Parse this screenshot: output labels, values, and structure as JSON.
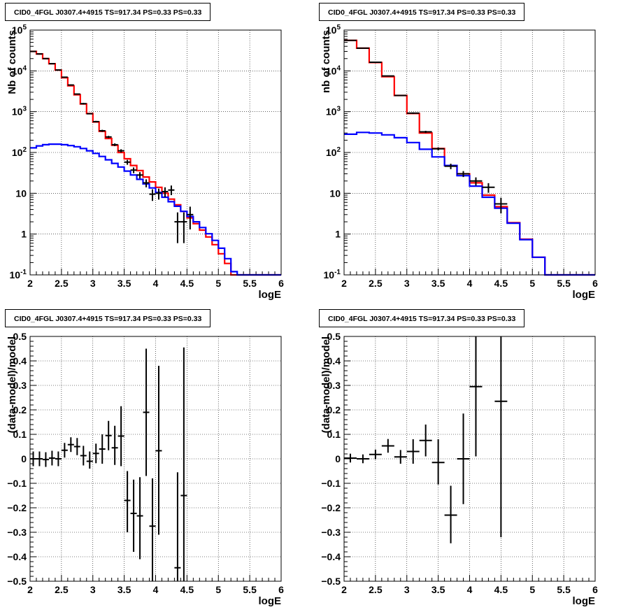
{
  "chart_data": [
    {
      "type": "histogram",
      "title": "CID0_4FGL J0307.4+4915 TS=917.34 PS=0.33 PS=0.33",
      "xlabel": "logE",
      "ylabel": "Nb of counts",
      "log_y": true,
      "xlim": [
        2,
        6
      ],
      "ylim": [
        0.1,
        100000
      ],
      "grid": true,
      "xticks": [
        "2",
        "2.5",
        "3",
        "3.5",
        "4",
        "4.5",
        "5",
        "5.5",
        "6"
      ],
      "yticks": [
        {
          "v": 0.1,
          "label": "10",
          "sup": "-1"
        },
        {
          "v": 1,
          "label": "1",
          "sup": ""
        },
        {
          "v": 10,
          "label": "10",
          "sup": ""
        },
        {
          "v": 100,
          "label": "10",
          "sup": "2"
        },
        {
          "v": 1000,
          "label": "10",
          "sup": "3"
        },
        {
          "v": 10000,
          "label": "10",
          "sup": "4"
        },
        {
          "v": 100000,
          "label": "10",
          "sup": "5"
        }
      ],
      "bin_width": 0.1,
      "bin_start": 2.0,
      "series": [
        {
          "color": "#ff0000",
          "values": [
            30000,
            26000,
            20000,
            15000,
            10500,
            6800,
            4300,
            2600,
            1550,
            900,
            560,
            330,
            220,
            150,
            100,
            70,
            48,
            36,
            25,
            19,
            14,
            10,
            7.2,
            5.2,
            3.6,
            2.5,
            1.8,
            1.25,
            0.85,
            0.55,
            0.33,
            0.19,
            0.1,
            0.1,
            0.1,
            0.1,
            0.1,
            0.1,
            0.1,
            0.1
          ]
        },
        {
          "color": "#0000ff",
          "values": [
            130,
            145,
            155,
            160,
            160,
            155,
            148,
            138,
            125,
            110,
            95,
            80,
            66,
            54,
            44,
            35,
            28,
            22,
            17,
            13.5,
            10.5,
            8,
            6.2,
            4.8,
            3.6,
            2.7,
            2.0,
            1.45,
            1.02,
            0.7,
            0.45,
            0.25,
            0.12,
            0.1,
            0.1,
            0.1,
            0.1,
            0.1,
            0.1,
            0.1
          ]
        }
      ],
      "points": [
        {
          "x": 2.05,
          "y": 30000,
          "lo": 29000,
          "hi": 31000
        },
        {
          "x": 2.15,
          "y": 26000,
          "lo": 25000,
          "hi": 27000
        },
        {
          "x": 2.25,
          "y": 20000,
          "lo": 19500,
          "hi": 20500
        },
        {
          "x": 2.35,
          "y": 15000,
          "lo": 14500,
          "hi": 15500
        },
        {
          "x": 2.45,
          "y": 10500,
          "lo": 10200,
          "hi": 10800
        },
        {
          "x": 2.55,
          "y": 7000,
          "lo": 6800,
          "hi": 7200
        },
        {
          "x": 2.65,
          "y": 4500,
          "lo": 4350,
          "hi": 4650
        },
        {
          "x": 2.75,
          "y": 2700,
          "lo": 2600,
          "hi": 2800
        },
        {
          "x": 2.85,
          "y": 1570,
          "lo": 1500,
          "hi": 1640
        },
        {
          "x": 2.95,
          "y": 890,
          "lo": 860,
          "hi": 920
        },
        {
          "x": 3.05,
          "y": 570,
          "lo": 545,
          "hi": 595
        },
        {
          "x": 3.15,
          "y": 340,
          "lo": 320,
          "hi": 360
        },
        {
          "x": 3.25,
          "y": 240,
          "lo": 225,
          "hi": 255
        },
        {
          "x": 3.35,
          "y": 155,
          "lo": 143,
          "hi": 167
        },
        {
          "x": 3.45,
          "y": 110,
          "lo": 100,
          "hi": 120
        },
        {
          "x": 3.55,
          "y": 58,
          "lo": 50,
          "hi": 66
        },
        {
          "x": 3.65,
          "y": 37,
          "lo": 31,
          "hi": 43
        },
        {
          "x": 3.75,
          "y": 28,
          "lo": 23,
          "hi": 33
        },
        {
          "x": 3.85,
          "y": 18,
          "lo": 14,
          "hi": 22
        },
        {
          "x": 3.95,
          "y": 9.5,
          "lo": 6.5,
          "hi": 12.5
        },
        {
          "x": 4.05,
          "y": 10,
          "lo": 7,
          "hi": 13
        },
        {
          "x": 4.15,
          "y": 11,
          "lo": 8,
          "hi": 14
        },
        {
          "x": 4.25,
          "y": 12,
          "lo": 9,
          "hi": 15.5
        },
        {
          "x": 4.35,
          "y": 2,
          "lo": 0.6,
          "hi": 3.4
        },
        {
          "x": 4.45,
          "y": 2,
          "lo": 0.6,
          "hi": 3.4
        },
        {
          "x": 4.55,
          "y": 3,
          "lo": 1.3,
          "hi": 4.7
        }
      ]
    },
    {
      "type": "histogram",
      "title": "CID0_4FGL J0307.4+4915 TS=917.34 PS=0.33 PS=0.33",
      "xlabel": "logE",
      "ylabel": "nb of counts",
      "log_y": true,
      "xlim": [
        2,
        6
      ],
      "ylim": [
        0.1,
        100000
      ],
      "grid": true,
      "xticks": [
        "2",
        "2.5",
        "3",
        "3.5",
        "4",
        "4.5",
        "5",
        "5.5",
        "6"
      ],
      "yticks": [
        {
          "v": 0.1,
          "label": "10",
          "sup": "-1"
        },
        {
          "v": 1,
          "label": "1",
          "sup": ""
        },
        {
          "v": 10,
          "label": "10",
          "sup": ""
        },
        {
          "v": 100,
          "label": "10",
          "sup": "2"
        },
        {
          "v": 1000,
          "label": "10",
          "sup": "3"
        },
        {
          "v": 10000,
          "label": "10",
          "sup": "4"
        },
        {
          "v": 100000,
          "label": "10",
          "sup": "5"
        }
      ],
      "bin_width": 0.2,
      "bin_start": 2.0,
      "series": [
        {
          "color": "#ff0000",
          "values": [
            56000,
            36000,
            16000,
            7200,
            2500,
            900,
            300,
            125,
            48,
            30,
            18,
            9,
            4.7,
            1.9,
            0.75,
            0.27,
            0.1,
            0.1,
            0.1,
            0.1
          ]
        },
        {
          "color": "#0000ff",
          "values": [
            280,
            310,
            300,
            270,
            230,
            175,
            120,
            78,
            48,
            27,
            15,
            8,
            4.3,
            1.85,
            0.73,
            0.27,
            0.1,
            0.1,
            0.1,
            0.1
          ]
        }
      ],
      "points": [
        {
          "x": 2.1,
          "y": 56000,
          "lo": 55000,
          "hi": 57000
        },
        {
          "x": 2.3,
          "y": 36000,
          "lo": 35300,
          "hi": 36700
        },
        {
          "x": 2.5,
          "y": 16300,
          "lo": 15900,
          "hi": 16700
        },
        {
          "x": 2.7,
          "y": 7500,
          "lo": 7300,
          "hi": 7700
        },
        {
          "x": 2.9,
          "y": 2500,
          "lo": 2430,
          "hi": 2570
        },
        {
          "x": 3.1,
          "y": 920,
          "lo": 880,
          "hi": 960
        },
        {
          "x": 3.3,
          "y": 320,
          "lo": 300,
          "hi": 340
        },
        {
          "x": 3.5,
          "y": 123,
          "lo": 112,
          "hi": 134
        },
        {
          "x": 3.7,
          "y": 46,
          "lo": 39,
          "hi": 53
        },
        {
          "x": 3.9,
          "y": 30,
          "lo": 25,
          "hi": 35
        },
        {
          "x": 4.1,
          "y": 20,
          "lo": 15.5,
          "hi": 24.5
        },
        {
          "x": 4.3,
          "y": 14,
          "lo": 10.3,
          "hi": 17.7
        },
        {
          "x": 4.5,
          "y": 5.5,
          "lo": 3.2,
          "hi": 7.8
        }
      ]
    },
    {
      "type": "scatter",
      "title": "CID0_4FGL J0307.4+4915 TS=917.34 PS=0.33 PS=0.33",
      "xlabel": "logE",
      "ylabel": "(data-model)/model",
      "log_y": false,
      "xlim": [
        2,
        6
      ],
      "ylim": [
        -0.5,
        0.5
      ],
      "grid": true,
      "xticks": [
        "2",
        "2.5",
        "3",
        "3.5",
        "4",
        "4.5",
        "5",
        "5.5",
        "6"
      ],
      "yticks": [
        {
          "v": -0.5,
          "label": "−0.5"
        },
        {
          "v": -0.4,
          "label": "−0.4"
        },
        {
          "v": -0.3,
          "label": "−0.3"
        },
        {
          "v": -0.2,
          "label": "−0.2"
        },
        {
          "v": -0.1,
          "label": "−0.1"
        },
        {
          "v": 0,
          "label": "0"
        },
        {
          "v": 0.1,
          "label": "0.1"
        },
        {
          "v": 0.2,
          "label": "0.2"
        },
        {
          "v": 0.3,
          "label": "0.3"
        },
        {
          "v": 0.4,
          "label": "0.4"
        },
        {
          "v": 0.5,
          "label": "0.5"
        }
      ],
      "bin_width": 0.1,
      "points": [
        {
          "x": 2.05,
          "y": 0.0,
          "lo": -0.03,
          "hi": 0.03
        },
        {
          "x": 2.15,
          "y": 0.0,
          "lo": -0.03,
          "hi": 0.03
        },
        {
          "x": 2.25,
          "y": -0.003,
          "lo": -0.033,
          "hi": 0.027
        },
        {
          "x": 2.35,
          "y": 0.003,
          "lo": -0.027,
          "hi": 0.033
        },
        {
          "x": 2.45,
          "y": 0.0,
          "lo": -0.03,
          "hi": 0.03
        },
        {
          "x": 2.55,
          "y": 0.035,
          "lo": 0.005,
          "hi": 0.065
        },
        {
          "x": 2.65,
          "y": 0.058,
          "lo": 0.028,
          "hi": 0.088
        },
        {
          "x": 2.75,
          "y": 0.05,
          "lo": 0.015,
          "hi": 0.085
        },
        {
          "x": 2.85,
          "y": 0.013,
          "lo": -0.027,
          "hi": 0.053
        },
        {
          "x": 2.95,
          "y": -0.01,
          "lo": -0.04,
          "hi": 0.03
        },
        {
          "x": 3.05,
          "y": 0.022,
          "lo": -0.018,
          "hi": 0.062
        },
        {
          "x": 3.15,
          "y": 0.04,
          "lo": -0.02,
          "hi": 0.1
        },
        {
          "x": 3.25,
          "y": 0.095,
          "lo": 0.035,
          "hi": 0.155
        },
        {
          "x": 3.35,
          "y": 0.045,
          "lo": -0.025,
          "hi": 0.135
        },
        {
          "x": 3.45,
          "y": 0.093,
          "lo": -0.03,
          "hi": 0.215
        },
        {
          "x": 3.55,
          "y": -0.17,
          "lo": -0.3,
          "hi": -0.05
        },
        {
          "x": 3.65,
          "y": -0.223,
          "lo": -0.38,
          "hi": -0.085
        },
        {
          "x": 3.75,
          "y": -0.233,
          "lo": -0.41,
          "hi": -0.075
        },
        {
          "x": 3.85,
          "y": 0.19,
          "lo": -0.07,
          "hi": 0.45
        },
        {
          "x": 3.95,
          "y": -0.275,
          "lo": -0.5,
          "hi": -0.08
        },
        {
          "x": 4.05,
          "y": 0.033,
          "lo": -0.31,
          "hi": 0.38
        },
        {
          "x": 4.35,
          "y": -0.445,
          "lo": -0.5,
          "hi": -0.055
        },
        {
          "x": 4.45,
          "y": -0.15,
          "lo": -0.5,
          "hi": 0.455
        }
      ]
    },
    {
      "type": "scatter",
      "title": "CID0_4FGL J0307.4+4915 TS=917.34 PS=0.33 PS=0.33",
      "xlabel": "logE",
      "ylabel": "(data-model)/model",
      "log_y": false,
      "xlim": [
        2,
        6
      ],
      "ylim": [
        -0.5,
        0.5
      ],
      "grid": true,
      "xticks": [
        "2",
        "2.5",
        "3",
        "3.5",
        "4",
        "4.5",
        "5",
        "5.5",
        "6"
      ],
      "yticks": [
        {
          "v": -0.5,
          "label": "−0.5"
        },
        {
          "v": -0.4,
          "label": "−0.4"
        },
        {
          "v": -0.3,
          "label": "−0.3"
        },
        {
          "v": -0.2,
          "label": "−0.2"
        },
        {
          "v": -0.1,
          "label": "−0.1"
        },
        {
          "v": 0,
          "label": "0"
        },
        {
          "v": 0.1,
          "label": "0.1"
        },
        {
          "v": 0.2,
          "label": "0.2"
        },
        {
          "v": 0.3,
          "label": "0.3"
        },
        {
          "v": 0.4,
          "label": "0.4"
        },
        {
          "v": 0.5,
          "label": "0.5"
        }
      ],
      "bin_width": 0.2,
      "points": [
        {
          "x": 2.1,
          "y": 0.003,
          "lo": -0.015,
          "hi": 0.021
        },
        {
          "x": 2.3,
          "y": 0.0,
          "lo": -0.018,
          "hi": 0.018
        },
        {
          "x": 2.5,
          "y": 0.018,
          "lo": -0.002,
          "hi": 0.038
        },
        {
          "x": 2.7,
          "y": 0.053,
          "lo": 0.025,
          "hi": 0.081
        },
        {
          "x": 2.9,
          "y": 0.008,
          "lo": -0.02,
          "hi": 0.036
        },
        {
          "x": 3.1,
          "y": 0.03,
          "lo": -0.02,
          "hi": 0.08
        },
        {
          "x": 3.3,
          "y": 0.075,
          "lo": 0.01,
          "hi": 0.14
        },
        {
          "x": 3.5,
          "y": -0.015,
          "lo": -0.105,
          "hi": 0.08
        },
        {
          "x": 3.7,
          "y": -0.23,
          "lo": -0.345,
          "hi": -0.11
        },
        {
          "x": 3.9,
          "y": 0.0,
          "lo": -0.185,
          "hi": 0.185
        },
        {
          "x": 4.1,
          "y": 0.295,
          "lo": 0.01,
          "hi": 0.5
        },
        {
          "x": 4.5,
          "y": 0.235,
          "lo": -0.32,
          "hi": 0.5
        }
      ]
    }
  ]
}
